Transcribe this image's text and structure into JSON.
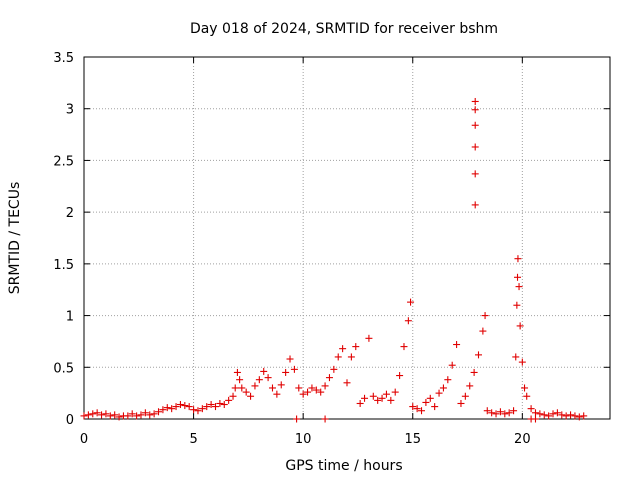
{
  "chart_data": {
    "type": "scatter",
    "title": "Day 018 of 2024, SRMTID for receiver bshm",
    "xlabel": "GPS time / hours",
    "ylabel": "SRMTID / TECUs",
    "xlim": [
      0,
      24
    ],
    "ylim": [
      0,
      3.5
    ],
    "xticks": [
      0,
      5,
      10,
      15,
      20
    ],
    "xtick_labels": [
      "0",
      "5",
      "10",
      "15",
      "20"
    ],
    "yticks": [
      0,
      0.5,
      1,
      1.5,
      2,
      2.5,
      3,
      3.5
    ],
    "ytick_labels": [
      "0",
      "0.5",
      "1",
      "1.5",
      "2",
      "2.5",
      "3",
      "3.5"
    ],
    "grid": true,
    "marker": "+",
    "series": [
      {
        "name": "SRMTID",
        "color": "#e00000",
        "points": [
          [
            0.0,
            0.03
          ],
          [
            0.2,
            0.04
          ],
          [
            0.4,
            0.05
          ],
          [
            0.6,
            0.06
          ],
          [
            0.8,
            0.04
          ],
          [
            1.0,
            0.05
          ],
          [
            1.2,
            0.03
          ],
          [
            1.4,
            0.04
          ],
          [
            1.6,
            0.02
          ],
          [
            1.8,
            0.03
          ],
          [
            2.0,
            0.03
          ],
          [
            2.2,
            0.05
          ],
          [
            2.4,
            0.03
          ],
          [
            2.6,
            0.04
          ],
          [
            2.8,
            0.06
          ],
          [
            3.0,
            0.04
          ],
          [
            3.2,
            0.05
          ],
          [
            3.4,
            0.07
          ],
          [
            3.6,
            0.09
          ],
          [
            3.8,
            0.11
          ],
          [
            4.0,
            0.1
          ],
          [
            4.2,
            0.12
          ],
          [
            4.4,
            0.14
          ],
          [
            4.6,
            0.13
          ],
          [
            4.8,
            0.12
          ],
          [
            5.0,
            0.09
          ],
          [
            5.2,
            0.08
          ],
          [
            5.4,
            0.1
          ],
          [
            5.6,
            0.12
          ],
          [
            5.8,
            0.14
          ],
          [
            6.0,
            0.12
          ],
          [
            6.2,
            0.15
          ],
          [
            6.4,
            0.14
          ],
          [
            6.6,
            0.18
          ],
          [
            6.8,
            0.22
          ],
          [
            6.9,
            0.3
          ],
          [
            7.0,
            0.45
          ],
          [
            7.1,
            0.38
          ],
          [
            7.2,
            0.3
          ],
          [
            7.4,
            0.26
          ],
          [
            7.6,
            0.22
          ],
          [
            7.8,
            0.32
          ],
          [
            8.0,
            0.38
          ],
          [
            8.2,
            0.46
          ],
          [
            8.4,
            0.4
          ],
          [
            8.6,
            0.3
          ],
          [
            8.8,
            0.24
          ],
          [
            9.0,
            0.33
          ],
          [
            9.2,
            0.45
          ],
          [
            9.4,
            0.58
          ],
          [
            9.6,
            0.48
          ],
          [
            9.8,
            0.3
          ],
          [
            10.0,
            0.24
          ],
          [
            10.2,
            0.26
          ],
          [
            10.4,
            0.3
          ],
          [
            10.6,
            0.28
          ],
          [
            10.8,
            0.26
          ],
          [
            11.0,
            0.32
          ],
          [
            11.2,
            0.4
          ],
          [
            11.4,
            0.48
          ],
          [
            11.6,
            0.6
          ],
          [
            11.8,
            0.68
          ],
          [
            12.0,
            0.35
          ],
          [
            12.2,
            0.6
          ],
          [
            12.4,
            0.7
          ],
          [
            12.6,
            0.15
          ],
          [
            12.8,
            0.2
          ],
          [
            13.0,
            0.78
          ],
          [
            13.2,
            0.22
          ],
          [
            13.4,
            0.18
          ],
          [
            13.6,
            0.2
          ],
          [
            13.8,
            0.24
          ],
          [
            14.0,
            0.18
          ],
          [
            14.2,
            0.26
          ],
          [
            14.4,
            0.42
          ],
          [
            14.6,
            0.7
          ],
          [
            14.8,
            0.95
          ],
          [
            14.9,
            1.13
          ],
          [
            15.0,
            0.12
          ],
          [
            15.2,
            0.1
          ],
          [
            15.4,
            0.08
          ],
          [
            15.6,
            0.16
          ],
          [
            15.8,
            0.2
          ],
          [
            16.0,
            0.12
          ],
          [
            16.2,
            0.25
          ],
          [
            16.4,
            0.3
          ],
          [
            16.6,
            0.38
          ],
          [
            16.8,
            0.52
          ],
          [
            17.0,
            0.72
          ],
          [
            17.2,
            0.15
          ],
          [
            17.4,
            0.22
          ],
          [
            17.6,
            0.32
          ],
          [
            17.8,
            0.45
          ],
          [
            17.85,
            2.07
          ],
          [
            17.85,
            2.37
          ],
          [
            17.85,
            2.63
          ],
          [
            17.85,
            2.84
          ],
          [
            17.85,
            2.99
          ],
          [
            17.85,
            3.07
          ],
          [
            18.0,
            0.62
          ],
          [
            18.2,
            0.85
          ],
          [
            18.3,
            1.0
          ],
          [
            18.4,
            0.08
          ],
          [
            18.6,
            0.06
          ],
          [
            18.8,
            0.05
          ],
          [
            19.0,
            0.07
          ],
          [
            19.2,
            0.05
          ],
          [
            19.4,
            0.06
          ],
          [
            19.6,
            0.08
          ],
          [
            19.7,
            0.6
          ],
          [
            19.75,
            1.1
          ],
          [
            19.78,
            1.37
          ],
          [
            19.8,
            1.55
          ],
          [
            19.85,
            1.28
          ],
          [
            19.9,
            0.9
          ],
          [
            20.0,
            0.55
          ],
          [
            20.1,
            0.3
          ],
          [
            20.2,
            0.22
          ],
          [
            20.4,
            0.1
          ],
          [
            20.6,
            0.06
          ],
          [
            20.8,
            0.05
          ],
          [
            21.0,
            0.04
          ],
          [
            21.2,
            0.03
          ],
          [
            21.4,
            0.05
          ],
          [
            21.6,
            0.06
          ],
          [
            21.8,
            0.04
          ],
          [
            22.0,
            0.03
          ],
          [
            22.2,
            0.04
          ],
          [
            22.4,
            0.03
          ],
          [
            22.6,
            0.02
          ],
          [
            22.8,
            0.03
          ],
          [
            9.7,
            0.0
          ],
          [
            11.0,
            0.0
          ],
          [
            20.4,
            0.0
          ],
          [
            20.6,
            0.0
          ]
        ]
      }
    ]
  }
}
